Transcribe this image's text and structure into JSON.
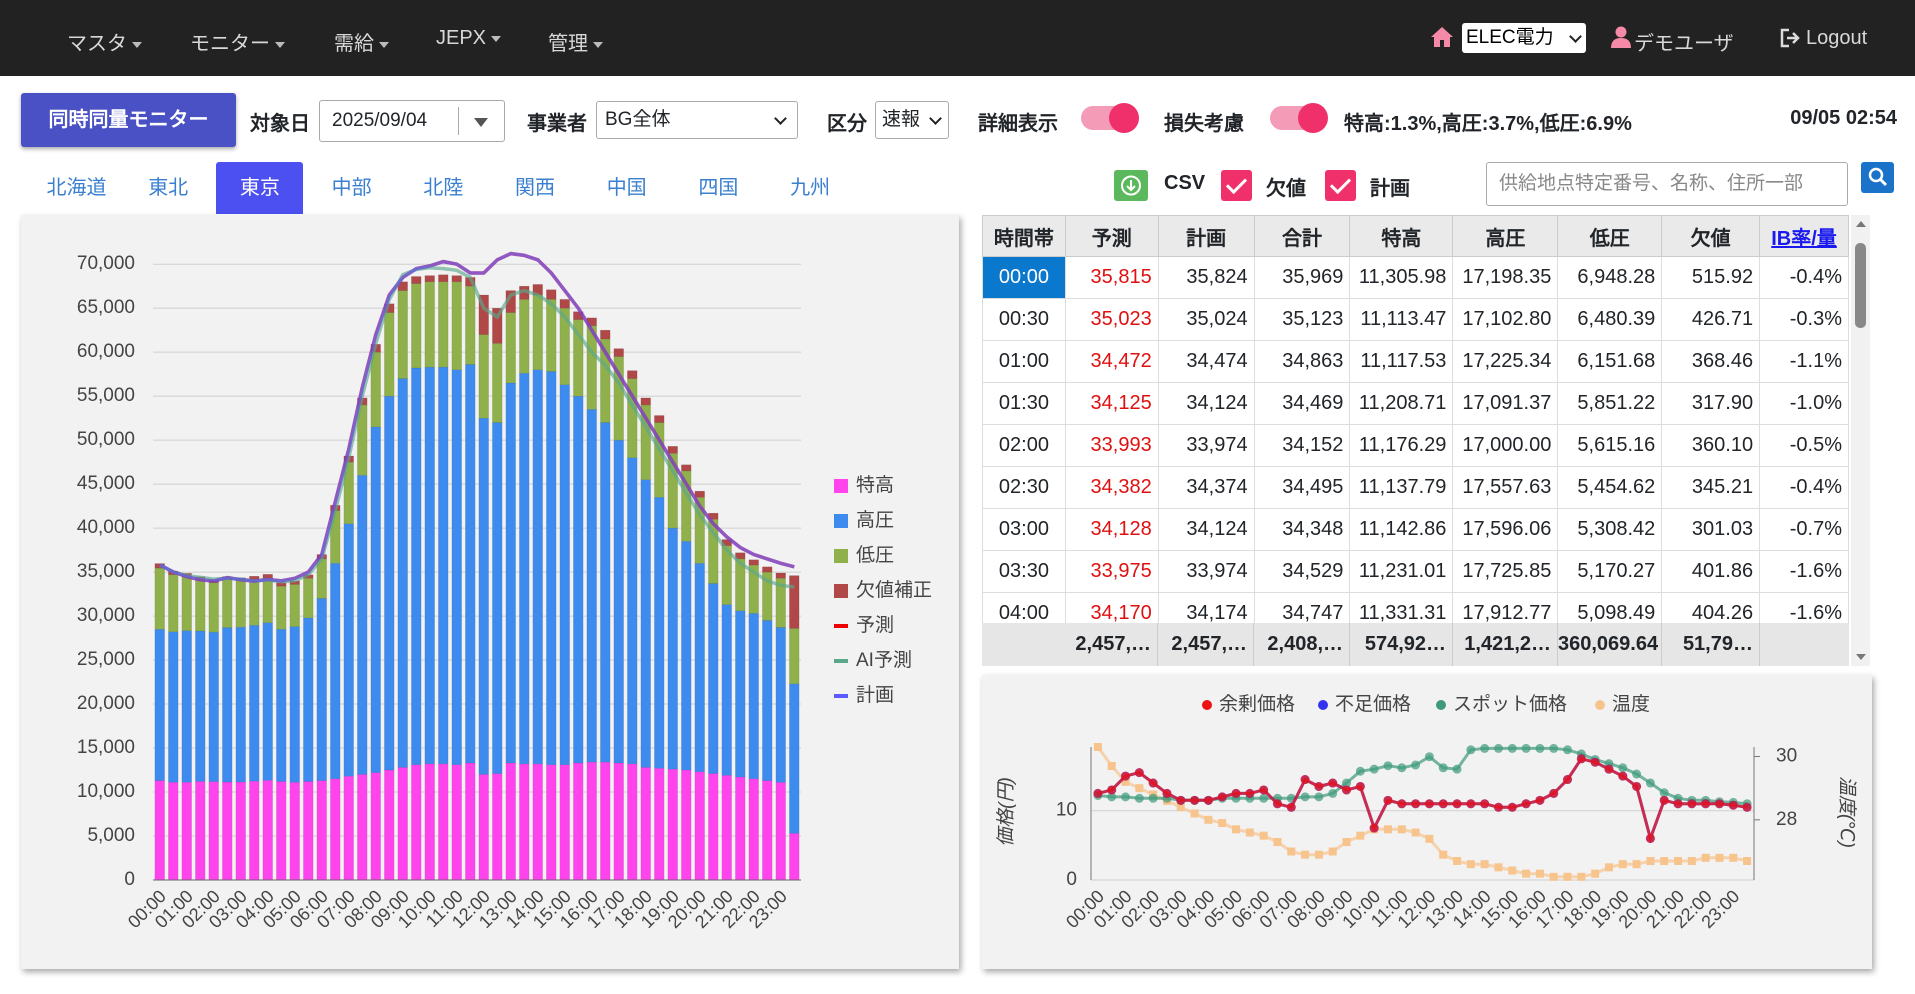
{
  "nav": {
    "menus": [
      "マスタ",
      "モニター",
      "需給",
      "JEPX",
      "管理"
    ],
    "company": "ELEC電力",
    "user": "デモユーザ",
    "logout": "Logout"
  },
  "toolbar": {
    "button": "同時同量モニター",
    "date_label": "対象日",
    "date": "2025/09/04",
    "operator_label": "事業者",
    "operator": "BG全体",
    "kind_label": "区分",
    "kind": "速報",
    "detail_label": "詳細表示",
    "loss_label": "損失考慮",
    "loss_rates": "特高:1.3%,高圧:3.7%,低圧:6.9%",
    "timestamp": "09/05 02:54"
  },
  "tabs": {
    "items": [
      "北海道",
      "東北",
      "東京",
      "中部",
      "北陸",
      "関西",
      "中国",
      "四国",
      "九州"
    ],
    "active": 2
  },
  "options": {
    "csv": "CSV",
    "missing": "欠値",
    "plan": "計画",
    "search_placeholder": "供給地点特定番号、名称、住所一部"
  },
  "table": {
    "headers": [
      "時間帯",
      "予測",
      "計画",
      "合計",
      "特高",
      "高圧",
      "低圧",
      "欠値",
      "IB率/量"
    ],
    "rows": [
      [
        "00:00",
        "35,815",
        "35,824",
        "35,969",
        "11,305.98",
        "17,198.35",
        "6,948.28",
        "515.92",
        "-0.4%"
      ],
      [
        "00:30",
        "35,023",
        "35,024",
        "35,123",
        "11,113.47",
        "17,102.80",
        "6,480.39",
        "426.71",
        "-0.3%"
      ],
      [
        "01:00",
        "34,472",
        "34,474",
        "34,863",
        "11,117.53",
        "17,225.34",
        "6,151.68",
        "368.46",
        "-1.1%"
      ],
      [
        "01:30",
        "34,125",
        "34,124",
        "34,469",
        "11,208.71",
        "17,091.37",
        "5,851.22",
        "317.90",
        "-1.0%"
      ],
      [
        "02:00",
        "33,993",
        "33,974",
        "34,152",
        "11,176.29",
        "17,000.00",
        "5,615.16",
        "360.10",
        "-0.5%"
      ],
      [
        "02:30",
        "34,382",
        "34,374",
        "34,495",
        "11,137.79",
        "17,557.63",
        "5,454.62",
        "345.21",
        "-0.4%"
      ],
      [
        "03:00",
        "34,128",
        "34,124",
        "34,348",
        "11,142.86",
        "17,596.06",
        "5,308.42",
        "301.03",
        "-0.7%"
      ],
      [
        "03:30",
        "33,975",
        "33,974",
        "34,529",
        "11,231.01",
        "17,725.85",
        "5,170.27",
        "401.86",
        "-1.6%"
      ],
      [
        "04:00",
        "34,170",
        "34,174",
        "34,747",
        "11,331.31",
        "17,912.77",
        "5,098.49",
        "404.26",
        "-1.6%"
      ]
    ],
    "footer": [
      "2,457,…",
      "2,457,…",
      "2,408,…",
      "574,92…",
      "1,421,2…",
      "360,069.64",
      "51,79…"
    ]
  },
  "chart_data": [
    {
      "type": "bar",
      "stacked": true,
      "categories": [
        "00:00",
        null,
        "01:00",
        null,
        "02:00",
        null,
        "03:00",
        null,
        "04:00",
        null,
        "05:00",
        null,
        "06:00",
        null,
        "07:00",
        null,
        "08:00",
        null,
        "09:00",
        null,
        "10:00",
        null,
        "11:00",
        null,
        "12:00",
        null,
        "13:00",
        null,
        "14:00",
        null,
        "15:00",
        null,
        "16:00",
        null,
        "17:00",
        null,
        "18:00",
        null,
        "19:00",
        null,
        "20:00",
        null,
        "21:00",
        null,
        "22:00",
        null,
        "23:00",
        null
      ],
      "ylim": [
        0,
        74000
      ],
      "yticks": [
        0,
        {
          "value": 5000,
          "label": "5,000"
        },
        {
          "value": 10000,
          "label": "10,000"
        },
        {
          "value": 15000,
          "label": "15,000"
        },
        {
          "value": 20000,
          "label": "20,000"
        },
        {
          "value": 25000,
          "label": "25,000"
        },
        {
          "value": 30000,
          "label": "30,000"
        },
        {
          "value": 35000,
          "label": "35,000"
        },
        {
          "value": 40000,
          "label": "40,000"
        },
        {
          "value": 45000,
          "label": "45,000"
        },
        {
          "value": 50000,
          "label": "50,000"
        },
        {
          "value": 55000,
          "label": "55,000"
        },
        {
          "value": 60000,
          "label": "60,000"
        },
        {
          "value": 65000,
          "label": "65,000"
        },
        {
          "value": 70000,
          "label": "70,000"
        }
      ],
      "grid": true,
      "legend": "right",
      "series": [
        {
          "name": "特高",
          "kind": "bar",
          "color": "#ff44ee",
          "values": [
            11305.98,
            11113.47,
            11117.53,
            11208.71,
            11176.29,
            11137.79,
            11142.86,
            11231.01,
            11331.31,
            11200,
            11100,
            11200,
            11300,
            11500,
            11800,
            12000,
            12200,
            12500,
            12800,
            13100,
            13200,
            13200,
            13100,
            13300,
            12000,
            12100,
            13300,
            13200,
            13200,
            13100,
            13100,
            13300,
            13400,
            13400,
            13300,
            13200,
            12800,
            12700,
            12600,
            12500,
            12300,
            12100,
            11900,
            11700,
            11500,
            11300,
            11100,
            5300
          ]
        },
        {
          "name": "高圧",
          "kind": "bar",
          "color": "#3d8bef",
          "values": [
            17198.35,
            17102.8,
            17225.34,
            17091.37,
            17000.0,
            17557.63,
            17596.06,
            17725.85,
            17912.77,
            17300,
            17700,
            18600,
            20700,
            24500,
            28700,
            34000,
            39300,
            42500,
            44200,
            45100,
            45100,
            45100,
            44900,
            45300,
            40500,
            39900,
            43200,
            44400,
            44800,
            44700,
            43200,
            41700,
            40100,
            38600,
            36700,
            34800,
            32700,
            30800,
            27400,
            26000,
            23700,
            21600,
            19400,
            18900,
            18800,
            18200,
            17600,
            17000
          ]
        },
        {
          "name": "低圧",
          "kind": "bar",
          "color": "#8fb04a",
          "values": [
            6948.28,
            6480.39,
            6151.68,
            5851.22,
            5615.16,
            5454.62,
            5308.42,
            5170.27,
            5098.49,
            4900,
            4800,
            4500,
            4500,
            6000,
            7000,
            8000,
            8500,
            9500,
            10000,
            9600,
            9700,
            9700,
            10000,
            8900,
            9500,
            9000,
            8000,
            8400,
            8500,
            8200,
            8700,
            8700,
            9500,
            9500,
            9500,
            9000,
            8500,
            8500,
            8500,
            8000,
            7500,
            7300,
            6700,
            5900,
            5500,
            5500,
            5600,
            6300
          ]
        },
        {
          "name": "欠値補正",
          "kind": "bar",
          "color": "#b04848",
          "values": [
            515.92,
            426.71,
            368.46,
            317.9,
            360.1,
            345.21,
            301.03,
            401.86,
            404.26,
            400,
            400,
            400,
            500,
            600,
            700,
            800,
            900,
            1000,
            1000,
            800,
            700,
            800,
            700,
            1000,
            4500,
            4000,
            2500,
            1500,
            1200,
            1100,
            1000,
            900,
            900,
            1000,
            900,
            900,
            800,
            800,
            800,
            700,
            700,
            700,
            700,
            700,
            600,
            600,
            600,
            6000
          ]
        },
        {
          "name": "予測",
          "kind": "line",
          "color": "#ee0000",
          "values": [
            35815,
            35023,
            34472,
            34125,
            33993,
            34382,
            34128,
            33975,
            34170,
            34000,
            34300,
            35000,
            37000,
            43000,
            49000,
            56000,
            62000,
            66500,
            68500,
            69500,
            69800,
            70300,
            70000,
            69000,
            69000,
            70500,
            71200,
            71000,
            70500,
            69000,
            67000,
            65000,
            62500,
            60000,
            57500,
            55000,
            52500,
            50000,
            47500,
            45000,
            42500,
            40500,
            39000,
            37800,
            37000,
            36500,
            36000,
            35600
          ]
        },
        {
          "name": "AI予測",
          "kind": "line",
          "color": "#5aa88a",
          "values": [
            35800,
            35000,
            34600,
            34400,
            34200,
            34300,
            34200,
            34000,
            34100,
            33900,
            34000,
            34700,
            36500,
            42000,
            48000,
            55000,
            61000,
            66000,
            68800,
            69400,
            69600,
            69500,
            69300,
            68500,
            65000,
            64000,
            66500,
            67000,
            66500,
            65500,
            64000,
            62000,
            60000,
            58500,
            56500,
            54000,
            51500,
            49000,
            46500,
            44000,
            41500,
            39500,
            37500,
            36000,
            35000,
            34000,
            33500,
            33300
          ]
        },
        {
          "name": "計画",
          "kind": "line",
          "color": "#5a5aff",
          "values": [
            35824,
            35024,
            34474,
            34124,
            33974,
            34374,
            34124,
            33974,
            34174,
            34000,
            34300,
            35000,
            37000,
            43000,
            49000,
            56000,
            62000,
            66500,
            68500,
            69500,
            69800,
            70300,
            70000,
            69000,
            69000,
            70500,
            71200,
            71000,
            70500,
            69000,
            67000,
            65000,
            62500,
            60000,
            57500,
            55000,
            52500,
            50000,
            47500,
            45000,
            42500,
            40500,
            39000,
            37800,
            37000,
            36500,
            36000,
            35600
          ]
        }
      ]
    },
    {
      "type": "line",
      "categories": [
        "00:00",
        null,
        "01:00",
        null,
        "02:00",
        null,
        "03:00",
        null,
        "04:00",
        null,
        "05:00",
        null,
        "06:00",
        null,
        "07:00",
        null,
        "08:00",
        null,
        "09:00",
        null,
        "10:00",
        null,
        "11:00",
        null,
        "12:00",
        null,
        "13:00",
        null,
        "14:00",
        null,
        "15:00",
        null,
        "16:00",
        null,
        "17:00",
        null,
        "18:00",
        null,
        "19:00",
        null,
        "20:00",
        null,
        "21:00",
        null,
        "22:00",
        null,
        "23:00",
        null
      ],
      "ylabel": "価格(円)",
      "y2label": "温度(℃)",
      "ylim": [
        0,
        19.2
      ],
      "yticks": [
        0,
        10
      ],
      "y2lim": [
        26.1,
        30.3
      ],
      "y2ticks": [
        28,
        30
      ],
      "grid": true,
      "legend": "top",
      "series": [
        {
          "name": "余剰価格",
          "color": "#ee1111",
          "values": [
            12.5,
            13,
            15,
            15.5,
            14,
            12.5,
            11.5,
            11.5,
            11.5,
            12,
            12.5,
            12.5,
            13,
            11,
            10.5,
            14.5,
            13.5,
            14,
            13,
            13.5,
            7.5,
            11.5,
            11,
            11,
            11,
            11,
            11,
            11,
            11,
            10.5,
            10.5,
            11,
            11.5,
            12.5,
            14.5,
            17.5,
            17,
            16,
            15,
            13.5,
            6,
            11.5,
            11,
            11,
            11,
            11,
            10.8,
            10.5
          ]
        },
        {
          "name": "不足価格",
          "color": "#3333ee",
          "values": [
            12.5,
            13,
            15,
            15.5,
            14,
            12.5,
            11.5,
            11.5,
            11.5,
            12,
            12.5,
            12.5,
            13,
            11,
            10.5,
            14.5,
            13.5,
            14,
            13,
            13.5,
            7.5,
            11.5,
            11,
            11,
            11,
            11,
            11,
            11,
            11,
            10.5,
            10.5,
            11,
            11.5,
            12.5,
            14.5,
            17.5,
            17,
            16,
            15,
            13.5,
            6,
            11.5,
            11,
            11,
            11,
            11,
            10.8,
            10.5
          ]
        },
        {
          "name": "スポット価格",
          "color": "#3f9a7a",
          "values": [
            12.2,
            12,
            12,
            11.8,
            11.8,
            11.8,
            11.5,
            11.5,
            11.5,
            11.8,
            11.8,
            11.8,
            11.8,
            11.8,
            11.8,
            12,
            12,
            12.5,
            14,
            15.7,
            16,
            16.5,
            16.2,
            16.6,
            17.8,
            16.2,
            16,
            18.8,
            19,
            19,
            19,
            19,
            19,
            19,
            18.8,
            18.2,
            17.4,
            16.8,
            16.2,
            15.3,
            14,
            12.6,
            11.8,
            11.5,
            11.5,
            11.3,
            11.2,
            11
          ]
        },
        {
          "name": "温度",
          "color": "#f7c48e",
          "axis": "y2",
          "values": [
            30.3,
            29.7,
            29.2,
            29.0,
            28.8,
            28.6,
            28.4,
            28.2,
            28.0,
            27.9,
            27.7,
            27.6,
            27.5,
            27.3,
            27.0,
            26.9,
            26.9,
            27.0,
            27.3,
            27.5,
            27.7,
            27.7,
            27.7,
            27.6,
            27.4,
            26.9,
            26.7,
            26.6,
            26.6,
            26.5,
            26.4,
            26.3,
            26.3,
            26.2,
            26.2,
            26.2,
            26.3,
            26.5,
            26.6,
            26.6,
            26.7,
            26.7,
            26.7,
            26.7,
            26.8,
            26.8,
            26.8,
            26.7
          ]
        }
      ]
    }
  ]
}
